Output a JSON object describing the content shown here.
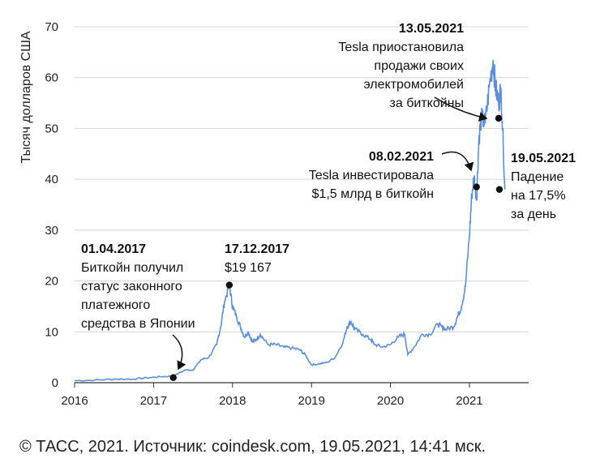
{
  "chart_data": {
    "type": "line",
    "title": "",
    "xlabel": "",
    "ylabel": "Тысяч долларов США",
    "xlim": [
      2016.0,
      2021.75
    ],
    "ylim": [
      0,
      70
    ],
    "grid": "horizontal",
    "x_ticks": [
      "2016",
      "2017",
      "2018",
      "2019",
      "2020",
      "2021"
    ],
    "y_ticks": [
      "0",
      "10",
      "20",
      "30",
      "40",
      "50",
      "60",
      "70"
    ],
    "line_color": "#5b8fdb",
    "series": [
      {
        "x": [
          2016.0,
          2016.25,
          2016.5,
          2016.75,
          2016.95,
          2017.1,
          2017.25,
          2017.4,
          2017.5,
          2017.6,
          2017.7,
          2017.8,
          2017.85,
          2017.9,
          2017.96,
          2018.0,
          2018.05,
          2018.1,
          2018.15,
          2018.2,
          2018.25,
          2018.3,
          2018.35,
          2018.45,
          2018.55,
          2018.65,
          2018.75,
          2018.85,
          2018.92,
          2019.0,
          2019.1,
          2019.2,
          2019.3,
          2019.4,
          2019.45,
          2019.5,
          2019.55,
          2019.65,
          2019.75,
          2019.8,
          2019.9,
          2020.0,
          2020.1,
          2020.18,
          2020.22,
          2020.3,
          2020.4,
          2020.5,
          2020.6,
          2020.65,
          2020.7,
          2020.8,
          2020.85,
          2020.9,
          2020.95,
          2021.0,
          2021.03,
          2021.06,
          2021.09,
          2021.12,
          2021.15,
          2021.2,
          2021.25,
          2021.3,
          2021.33,
          2021.37,
          2021.4,
          2021.45
        ],
        "values": [
          0.4,
          0.5,
          0.7,
          0.7,
          1.0,
          1.2,
          1.3,
          2.5,
          2.5,
          4.5,
          5.0,
          7.5,
          11.0,
          16.0,
          19.2,
          15.0,
          13.0,
          11.0,
          9.0,
          10.0,
          8.0,
          8.5,
          9.5,
          7.5,
          7.5,
          7.0,
          6.8,
          6.5,
          5.5,
          3.5,
          3.7,
          4.0,
          5.0,
          8.0,
          11.0,
          12.0,
          10.5,
          9.5,
          8.5,
          7.5,
          7.0,
          7.5,
          9.0,
          9.5,
          5.5,
          7.0,
          9.5,
          9.5,
          11.5,
          11.0,
          10.5,
          11.0,
          13.0,
          15.0,
          19.0,
          29.0,
          37.0,
          40.5,
          36.0,
          48.0,
          52.0,
          51.0,
          58.0,
          63.5,
          58.0,
          55.0,
          58.0,
          38.0
        ]
      }
    ],
    "points": [
      {
        "x": 2017.25,
        "y": 1.0
      },
      {
        "x": 2017.96,
        "y": 19.2
      },
      {
        "x": 2021.09,
        "y": 38.5
      },
      {
        "x": 2021.37,
        "y": 52.0
      },
      {
        "x": 2021.38,
        "y": 38.0
      }
    ],
    "annotations": [
      {
        "date": "01.04.2017",
        "lines": [
          "Биткойн получил",
          "статус законного",
          "платежного",
          "средства в Японии"
        ]
      },
      {
        "date": "17.12.2017",
        "lines": [
          "$19 167"
        ]
      },
      {
        "date": "08.02.2021",
        "lines": [
          "Tesla инвестировала",
          "$1,5 млрд в биткойн"
        ]
      },
      {
        "date": "13.05.2021",
        "lines": [
          "Tesla приостановила",
          "продажи своих",
          "электромобилей",
          "за биткойны"
        ]
      },
      {
        "date": "19.05.2021",
        "lines": [
          "Падение",
          "на 17,5%",
          "за день"
        ]
      }
    ]
  },
  "source": "© ТАСС, 2021. Источник: coindesk.com, 19.05.2021, 14:41 мск."
}
